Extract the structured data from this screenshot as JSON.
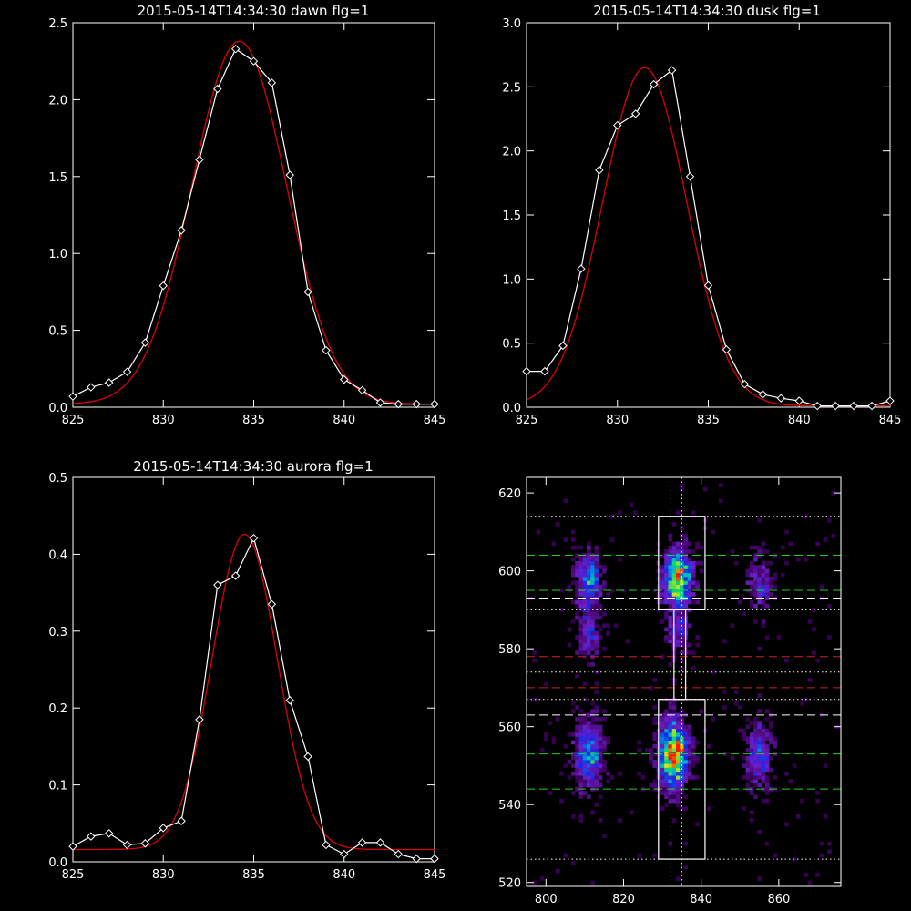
{
  "colors": {
    "background": "#000000",
    "axes": "#ffffff",
    "observed": "#ffffff",
    "fit": "#dd0000",
    "guide_green": "#22cc22",
    "guide_red": "#cc2222",
    "guide_white": "#ffffff"
  },
  "chart_data": [
    {
      "type": "line",
      "title": "2015-05-14T14:34:30 dawn flg=1",
      "xlim": [
        825,
        845
      ],
      "ylim": [
        0,
        2.5
      ],
      "xticks": [
        "825",
        "830",
        "835",
        "840",
        "845"
      ],
      "xtick_values": [
        825,
        830,
        835,
        840,
        845
      ],
      "yticks": [
        "0.0",
        "0.5",
        "1.0",
        "1.5",
        "2.0",
        "2.5"
      ],
      "ytick_values": [
        0,
        0.5,
        1.0,
        1.5,
        2.0,
        2.5
      ],
      "grid": false,
      "observed": {
        "x": [
          825,
          826,
          827,
          828,
          829,
          830,
          831,
          832,
          833,
          834,
          835,
          836,
          837,
          838,
          839,
          840,
          841,
          842,
          843,
          844,
          845
        ],
        "y": [
          0.07,
          0.13,
          0.16,
          0.23,
          0.42,
          0.79,
          1.15,
          1.61,
          2.07,
          2.33,
          2.25,
          2.11,
          1.51,
          0.75,
          0.37,
          0.18,
          0.11,
          0.03,
          0.02,
          0.02,
          0.02
        ]
      },
      "fit": {
        "amplitude": 2.36,
        "center": 834.2,
        "sigma": 2.6,
        "offset": 0.02
      }
    },
    {
      "type": "line",
      "title": "2015-05-14T14:34:30 dusk flg=1",
      "xlim": [
        825,
        845
      ],
      "ylim": [
        0,
        3.0
      ],
      "xticks": [
        "825",
        "830",
        "835",
        "840",
        "845"
      ],
      "xtick_values": [
        825,
        830,
        835,
        840,
        845
      ],
      "yticks": [
        "0.0",
        "0.5",
        "1.0",
        "1.5",
        "2.0",
        "2.5",
        "3.0"
      ],
      "ytick_values": [
        0,
        0.5,
        1.0,
        1.5,
        2.0,
        2.5,
        3.0
      ],
      "grid": false,
      "observed": {
        "x": [
          825,
          826,
          827,
          828,
          829,
          830,
          831,
          832,
          833,
          834,
          835,
          836,
          837,
          838,
          839,
          840,
          841,
          842,
          843,
          844,
          845
        ],
        "y": [
          0.28,
          0.28,
          0.48,
          1.08,
          1.85,
          2.2,
          2.29,
          2.52,
          2.63,
          1.8,
          0.95,
          0.45,
          0.18,
          0.1,
          0.07,
          0.05,
          0.01,
          0.01,
          0.01,
          0.01,
          0.05
        ]
      },
      "fit": {
        "amplitude": 2.64,
        "center": 831.5,
        "sigma": 2.3,
        "offset": 0.01
      }
    },
    {
      "type": "line",
      "title": "2015-05-14T14:34:30 aurora flg=1",
      "xlim": [
        825,
        845
      ],
      "ylim": [
        0,
        0.5
      ],
      "xticks": [
        "825",
        "830",
        "835",
        "840",
        "845"
      ],
      "xtick_values": [
        825,
        830,
        835,
        840,
        845
      ],
      "yticks": [
        "0.0",
        "0.1",
        "0.2",
        "0.3",
        "0.4",
        "0.5"
      ],
      "ytick_values": [
        0,
        0.1,
        0.2,
        0.3,
        0.4,
        0.5
      ],
      "grid": false,
      "observed": {
        "x": [
          825,
          826,
          827,
          828,
          829,
          830,
          831,
          832,
          833,
          834,
          835,
          836,
          837,
          838,
          839,
          840,
          841,
          842,
          843,
          844,
          845
        ],
        "y": [
          0.02,
          0.033,
          0.037,
          0.022,
          0.024,
          0.044,
          0.053,
          0.185,
          0.36,
          0.372,
          0.421,
          0.335,
          0.21,
          0.137,
          0.022,
          0.01,
          0.025,
          0.025,
          0.01,
          0.004,
          0.004
        ]
      },
      "fit": {
        "amplitude": 0.41,
        "center": 834.5,
        "sigma": 1.8,
        "offset": 0.016
      }
    },
    {
      "type": "heatmap",
      "title": "",
      "xlim": [
        795,
        876
      ],
      "ylim": [
        519,
        624
      ],
      "xticks": [
        "800",
        "820",
        "840",
        "860"
      ],
      "xtick_values": [
        800,
        820,
        840,
        860
      ],
      "yticks": [
        "520",
        "540",
        "560",
        "580",
        "600",
        "620"
      ],
      "ytick_values": [
        520,
        540,
        560,
        580,
        600,
        620
      ],
      "grid": false,
      "colormap": "rainbow",
      "blobs": [
        {
          "x": 811,
          "y": 598,
          "peak": 0.55,
          "sx": 2.2,
          "sy": 5
        },
        {
          "x": 811,
          "y": 584,
          "peak": 0.35,
          "sx": 2.0,
          "sy": 5
        },
        {
          "x": 811,
          "y": 553,
          "peak": 0.6,
          "sx": 2.4,
          "sy": 6
        },
        {
          "x": 834,
          "y": 598,
          "peak": 0.9,
          "sx": 2.6,
          "sy": 5
        },
        {
          "x": 834,
          "y": 584,
          "peak": 0.35,
          "sx": 2.0,
          "sy": 4
        },
        {
          "x": 833,
          "y": 553,
          "peak": 1.0,
          "sx": 2.6,
          "sy": 6
        },
        {
          "x": 855,
          "y": 597,
          "peak": 0.35,
          "sx": 2.2,
          "sy": 5
        },
        {
          "x": 855,
          "y": 553,
          "peak": 0.4,
          "sx": 2.4,
          "sy": 6
        }
      ],
      "boxes": [
        {
          "x0": 829,
          "x1": 841,
          "y0": 590,
          "y1": 614
        },
        {
          "x0": 829,
          "x1": 841,
          "y0": 526,
          "y1": 567
        },
        {
          "x0": 833,
          "x1": 836,
          "y0": 567,
          "y1": 590
        }
      ],
      "vlines_dotted": [
        832,
        835
      ],
      "hlines": [
        {
          "y": 614,
          "style": "dotted",
          "color": "white"
        },
        {
          "y": 604,
          "style": "dashed",
          "color": "green"
        },
        {
          "y": 595,
          "style": "dashed",
          "color": "green"
        },
        {
          "y": 593,
          "style": "dashed",
          "color": "white"
        },
        {
          "y": 590,
          "style": "dotted",
          "color": "white"
        },
        {
          "y": 578,
          "style": "dashed",
          "color": "red"
        },
        {
          "y": 574,
          "style": "dotted",
          "color": "white"
        },
        {
          "y": 570,
          "style": "dashed",
          "color": "red"
        },
        {
          "y": 567,
          "style": "dotted",
          "color": "white"
        },
        {
          "y": 563,
          "style": "dashed",
          "color": "white"
        },
        {
          "y": 553,
          "style": "dashed",
          "color": "green"
        },
        {
          "y": 544,
          "style": "dashed",
          "color": "green"
        },
        {
          "y": 526,
          "style": "dotted",
          "color": "white"
        }
      ]
    }
  ]
}
